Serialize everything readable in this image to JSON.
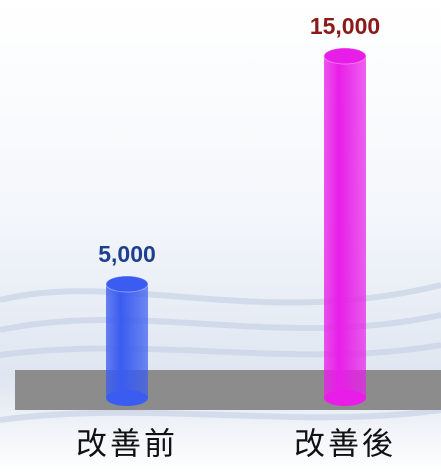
{
  "chart_data": {
    "type": "cylinder-bar",
    "categories": [
      "改善前",
      "改善後"
    ],
    "values": [
      5000,
      15000
    ],
    "value_labels": [
      "5,000",
      "15,000"
    ],
    "colors": [
      "#3a5cf0",
      "#e81ee8"
    ],
    "label_colors": [
      "#1d3f8f",
      "#8b1a1a"
    ]
  }
}
